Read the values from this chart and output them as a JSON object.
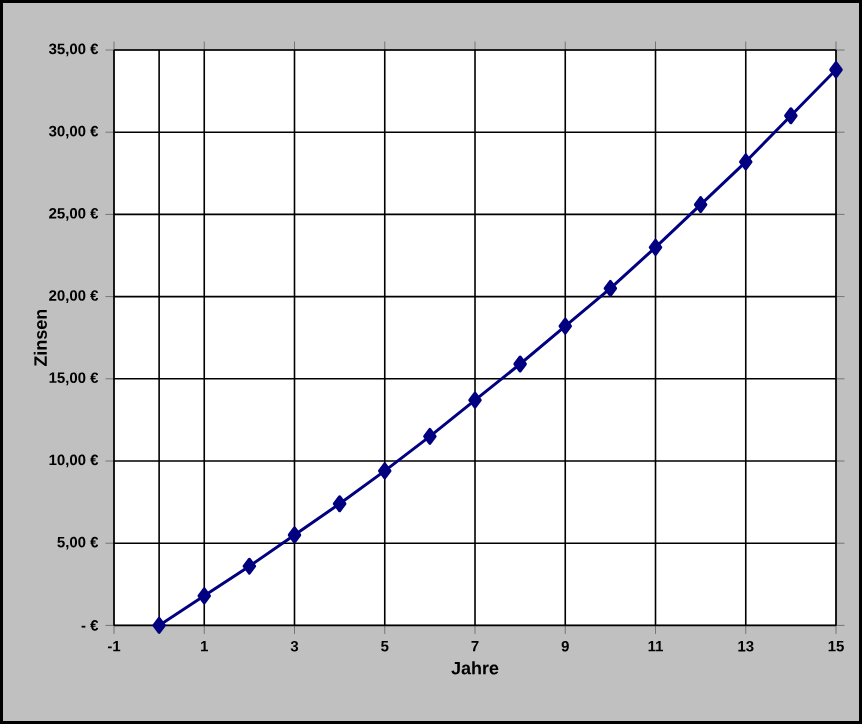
{
  "chart_data": {
    "type": "line",
    "xlabel": "Jahre",
    "ylabel": "Zinsen",
    "x": [
      0,
      1,
      2,
      3,
      4,
      5,
      6,
      7,
      8,
      9,
      10,
      11,
      12,
      13,
      14,
      15
    ],
    "series": [
      {
        "color": "#000080",
        "values": [
          0,
          1.8,
          3.6,
          5.5,
          7.4,
          9.4,
          11.5,
          13.7,
          15.9,
          18.2,
          20.5,
          23.0,
          25.6,
          28.2,
          31.0,
          33.8
        ]
      }
    ],
    "xlim": [
      -1,
      15
    ],
    "xticks": [
      -1,
      1,
      3,
      5,
      7,
      9,
      11,
      13,
      15
    ],
    "ylim": [
      0,
      35
    ],
    "yticks": [
      {
        "value": 0,
        "label": "-   €"
      },
      {
        "value": 5,
        "label": "5,00 €"
      },
      {
        "value": 10,
        "label": "10,00 €"
      },
      {
        "value": 15,
        "label": "15,00 €"
      },
      {
        "value": 20,
        "label": "20,00 €"
      },
      {
        "value": 25,
        "label": "25,00 €"
      },
      {
        "value": 30,
        "label": "30,00 €"
      },
      {
        "value": 35,
        "label": "35,00 €"
      }
    ],
    "ref_lines": [
      {
        "axis": "x",
        "value": 0,
        "color": "#000000"
      }
    ],
    "grid": true,
    "marker": "diamond",
    "line_style": "solid"
  }
}
